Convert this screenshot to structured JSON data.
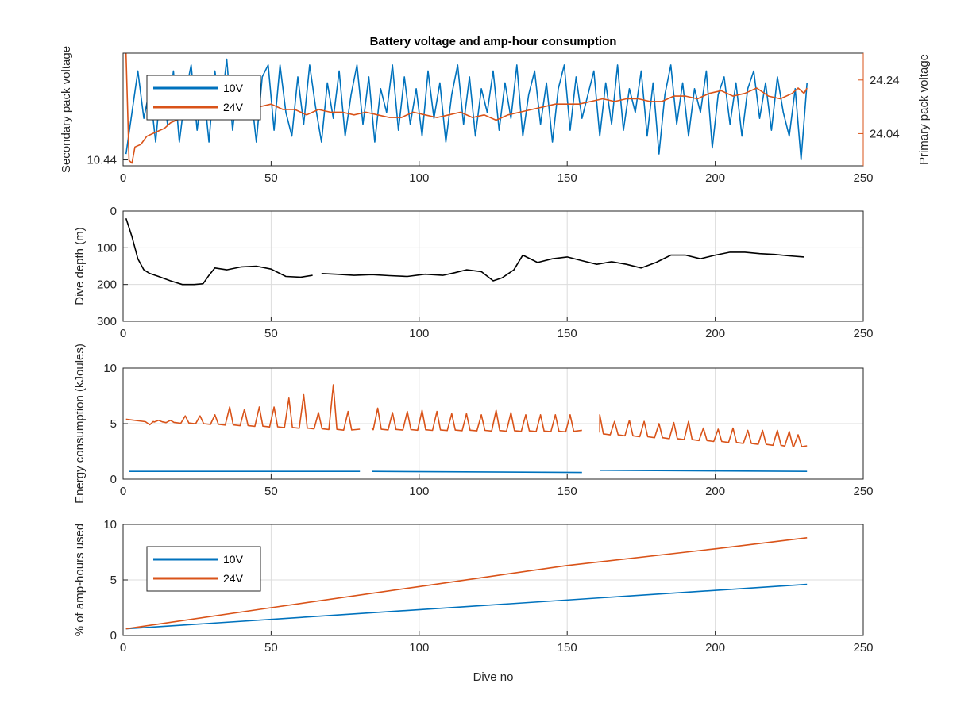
{
  "figure": {
    "title": "Battery voltage and amp-hour consumption",
    "xlabel": "Dive no"
  },
  "colors": {
    "blue": "#0072BD",
    "orange": "#D95319",
    "black": "#000000",
    "axis": "#262626",
    "grid": "#dcdcdc"
  },
  "chart_data": [
    {
      "type": "line",
      "title": "Battery voltage and amp-hour consumption",
      "xlabel": "",
      "ylabel": "Secondary pack voltage",
      "ylabel_right": "Primary pack voltage",
      "xlim": [
        0,
        250
      ],
      "xticks": [
        "0",
        "50",
        "100",
        "150",
        "200",
        "250"
      ],
      "ylim_left": [
        10.43,
        10.62
      ],
      "yticks_left": [
        10.44
      ],
      "yticks_left_labels": [
        "10.44"
      ],
      "ylim_right": [
        23.92,
        24.34
      ],
      "yticks_right": [
        24.04,
        24.24
      ],
      "yticks_right_labels": [
        "24.04",
        "24.24"
      ],
      "grid": false,
      "legend": {
        "position": "top-left",
        "entries": [
          "10V",
          "24V"
        ]
      },
      "series": [
        {
          "name": "10V",
          "axis": "left",
          "color": "#0072BD",
          "x": [
            1,
            3,
            5,
            7,
            9,
            11,
            13,
            15,
            17,
            19,
            21,
            23,
            25,
            27,
            29,
            31,
            33,
            35,
            37,
            39,
            41,
            43,
            45,
            47,
            49,
            51,
            53,
            55,
            57,
            59,
            61,
            63,
            65,
            67,
            69,
            71,
            73,
            75,
            77,
            79,
            81,
            83,
            85,
            87,
            89,
            91,
            93,
            95,
            97,
            99,
            101,
            103,
            105,
            107,
            109,
            111,
            113,
            115,
            117,
            119,
            121,
            123,
            125,
            127,
            129,
            131,
            133,
            135,
            137,
            139,
            141,
            143,
            145,
            147,
            149,
            151,
            153,
            155,
            157,
            159,
            161,
            163,
            165,
            167,
            169,
            171,
            173,
            175,
            177,
            179,
            181,
            183,
            185,
            187,
            189,
            191,
            193,
            195,
            197,
            199,
            201,
            203,
            205,
            207,
            209,
            211,
            213,
            215,
            217,
            219,
            221,
            223,
            225,
            227,
            229,
            231
          ],
          "values": [
            10.45,
            10.52,
            10.59,
            10.51,
            10.56,
            10.47,
            10.58,
            10.5,
            10.59,
            10.47,
            10.55,
            10.6,
            10.49,
            10.57,
            10.47,
            10.59,
            10.52,
            10.61,
            10.49,
            10.58,
            10.51,
            10.56,
            10.47,
            10.58,
            10.6,
            10.49,
            10.6,
            10.52,
            10.48,
            10.58,
            10.5,
            10.6,
            10.53,
            10.47,
            10.57,
            10.51,
            10.59,
            10.48,
            10.55,
            10.6,
            10.5,
            10.58,
            10.47,
            10.56,
            10.52,
            10.6,
            10.49,
            10.58,
            10.5,
            10.56,
            10.48,
            10.59,
            10.51,
            10.57,
            10.47,
            10.55,
            10.6,
            10.5,
            10.58,
            10.48,
            10.56,
            10.52,
            10.59,
            10.49,
            10.57,
            10.51,
            10.6,
            10.48,
            10.55,
            10.59,
            10.5,
            10.57,
            10.47,
            10.56,
            10.6,
            10.49,
            10.58,
            10.51,
            10.55,
            10.59,
            10.48,
            10.57,
            10.5,
            10.6,
            10.49,
            10.56,
            10.52,
            10.59,
            10.48,
            10.57,
            10.45,
            10.55,
            10.6,
            10.5,
            10.57,
            10.48,
            10.56,
            10.52,
            10.59,
            10.46,
            10.55,
            10.58,
            10.5,
            10.57,
            10.48,
            10.56,
            10.59,
            10.51,
            10.57,
            10.49,
            10.58,
            10.52,
            10.48,
            10.56,
            10.44,
            10.57
          ]
        },
        {
          "name": "24V",
          "axis": "right",
          "color": "#D95319",
          "x": [
            1,
            2,
            3,
            4,
            6,
            8,
            10,
            12,
            14,
            16,
            18,
            20,
            22,
            24,
            26,
            28,
            30,
            34,
            38,
            42,
            46,
            50,
            54,
            58,
            62,
            66,
            70,
            74,
            78,
            82,
            86,
            90,
            94,
            98,
            102,
            106,
            110,
            114,
            118,
            122,
            126,
            130,
            134,
            138,
            142,
            146,
            150,
            154,
            158,
            162,
            166,
            170,
            174,
            178,
            182,
            186,
            190,
            194,
            198,
            202,
            206,
            210,
            214,
            218,
            222,
            226,
            228,
            230,
            231
          ],
          "values": [
            24.34,
            23.94,
            23.93,
            23.99,
            24.0,
            24.03,
            24.04,
            24.05,
            24.06,
            24.08,
            24.09,
            24.1,
            24.11,
            24.13,
            24.15,
            24.18,
            24.17,
            24.16,
            24.16,
            24.15,
            24.14,
            24.15,
            24.13,
            24.13,
            24.11,
            24.13,
            24.12,
            24.12,
            24.11,
            24.12,
            24.11,
            24.1,
            24.1,
            24.12,
            24.11,
            24.1,
            24.11,
            24.12,
            24.1,
            24.11,
            24.09,
            24.11,
            24.12,
            24.13,
            24.14,
            24.15,
            24.15,
            24.15,
            24.16,
            24.17,
            24.16,
            24.17,
            24.17,
            24.16,
            24.16,
            24.18,
            24.18,
            24.17,
            24.19,
            24.2,
            24.18,
            24.19,
            24.21,
            24.18,
            24.17,
            24.19,
            24.21,
            24.19,
            24.21
          ]
        }
      ]
    },
    {
      "type": "line",
      "title": "",
      "xlabel": "",
      "ylabel": "Dive depth (m)",
      "xlim": [
        0,
        250
      ],
      "xticks": [
        "0",
        "50",
        "100",
        "150",
        "200",
        "250"
      ],
      "ylim": [
        0,
        300
      ],
      "y_reversed": true,
      "yticks": [
        0,
        100,
        200,
        300
      ],
      "yticks_labels": [
        "0",
        "100",
        "200",
        "300"
      ],
      "grid": true,
      "series": [
        {
          "color": "#000000",
          "segments": [
            {
              "x": [
                1,
                3,
                5,
                7,
                9,
                12,
                16,
                20,
                24,
                27,
                29,
                31,
                35,
                40,
                45,
                50,
                55,
                60,
                64
              ],
              "values": [
                20,
                70,
                130,
                160,
                170,
                178,
                190,
                200,
                200,
                198,
                175,
                155,
                160,
                152,
                150,
                158,
                178,
                180,
                175
              ]
            },
            {
              "x": [
                67,
                72,
                78,
                84,
                90,
                96,
                102,
                108,
                112,
                116,
                121,
                125,
                128,
                132,
                135,
                140,
                145,
                150,
                155,
                160,
                165,
                170,
                175,
                180,
                185,
                190,
                195,
                200,
                205,
                210,
                215,
                220,
                225,
                230
              ],
              "values": [
                170,
                172,
                175,
                173,
                176,
                178,
                172,
                175,
                168,
                160,
                165,
                190,
                182,
                160,
                120,
                140,
                130,
                125,
                135,
                145,
                138,
                145,
                155,
                140,
                120,
                120,
                130,
                120,
                112,
                112,
                116,
                118,
                122,
                125
              ]
            }
          ]
        }
      ]
    },
    {
      "type": "line",
      "title": "",
      "xlabel": "",
      "ylabel": "Energy consumption (kJoules)",
      "xlim": [
        0,
        250
      ],
      "xticks": [
        "0",
        "50",
        "100",
        "150",
        "200",
        "250"
      ],
      "ylim": [
        0,
        10
      ],
      "yticks": [
        0,
        5,
        10
      ],
      "yticks_labels": [
        "0",
        "5",
        "10"
      ],
      "grid": true,
      "series": [
        {
          "color": "#D95319",
          "spike_segments": [
            {
              "x_start": 1,
              "x_end": 80,
              "base": [
                5.4,
                4.5
              ],
              "peaks": [
                [
                  9,
                  4.9
                ],
                [
                  12,
                  5.3
                ],
                [
                  16,
                  5.3
                ],
                [
                  21,
                  5.7
                ],
                [
                  26,
                  5.7
                ],
                [
                  31,
                  5.8
                ],
                [
                  36,
                  6.5
                ],
                [
                  41,
                  6.3
                ],
                [
                  46,
                  6.5
                ],
                [
                  51,
                  6.5
                ],
                [
                  56,
                  7.3
                ],
                [
                  61,
                  7.6
                ],
                [
                  66,
                  6.0
                ],
                [
                  71,
                  8.5
                ],
                [
                  76,
                  6.1
                ]
              ]
            },
            {
              "x_start": 84,
              "x_end": 155,
              "base": [
                4.6,
                4.4
              ],
              "peaks": [
                [
                  86,
                  6.4
                ],
                [
                  91,
                  6.0
                ],
                [
                  96,
                  6.1
                ],
                [
                  101,
                  6.2
                ],
                [
                  106,
                  6.1
                ],
                [
                  111,
                  5.9
                ],
                [
                  116,
                  5.9
                ],
                [
                  121,
                  5.8
                ],
                [
                  126,
                  6.2
                ],
                [
                  131,
                  6.0
                ],
                [
                  136,
                  5.8
                ],
                [
                  141,
                  5.8
                ],
                [
                  146,
                  5.8
                ],
                [
                  151,
                  5.8
                ]
              ]
            },
            {
              "x_start": 161,
              "x_end": 231,
              "base": [
                4.2,
                3.0
              ],
              "peaks": [
                [
                  161,
                  5.8
                ],
                [
                  166,
                  5.2
                ],
                [
                  171,
                  5.3
                ],
                [
                  176,
                  5.2
                ],
                [
                  181,
                  5.0
                ],
                [
                  186,
                  5.1
                ],
                [
                  191,
                  5.2
                ],
                [
                  196,
                  4.6
                ],
                [
                  201,
                  4.5
                ],
                [
                  206,
                  4.6
                ],
                [
                  211,
                  4.4
                ],
                [
                  216,
                  4.4
                ],
                [
                  221,
                  4.4
                ],
                [
                  225,
                  4.3
                ],
                [
                  228,
                  4.0
                ]
              ]
            }
          ]
        },
        {
          "color": "#0072BD",
          "segments": [
            {
              "x": [
                2,
                80
              ],
              "values": [
                0.7,
                0.7
              ]
            },
            {
              "x": [
                84,
                155
              ],
              "values": [
                0.7,
                0.6
              ]
            },
            {
              "x": [
                161,
                231
              ],
              "values": [
                0.8,
                0.7
              ]
            }
          ]
        }
      ]
    },
    {
      "type": "line",
      "title": "",
      "xlabel": "Dive no",
      "ylabel": "% of amp-hours used",
      "xlim": [
        0,
        250
      ],
      "xticks": [
        "0",
        "50",
        "100",
        "150",
        "200",
        "250"
      ],
      "ylim": [
        0,
        10
      ],
      "yticks": [
        0,
        5,
        10
      ],
      "yticks_labels": [
        "0",
        "5",
        "10"
      ],
      "grid": true,
      "legend": {
        "position": "top-left",
        "entries": [
          "10V",
          "24V"
        ]
      },
      "series": [
        {
          "name": "10V",
          "color": "#0072BD",
          "x": [
            1,
            231
          ],
          "values": [
            0.6,
            4.6
          ]
        },
        {
          "name": "24V",
          "color": "#D95319",
          "x": [
            1,
            50,
            100,
            150,
            200,
            231
          ],
          "values": [
            0.6,
            2.5,
            4.4,
            6.3,
            7.8,
            8.8
          ]
        }
      ]
    }
  ]
}
